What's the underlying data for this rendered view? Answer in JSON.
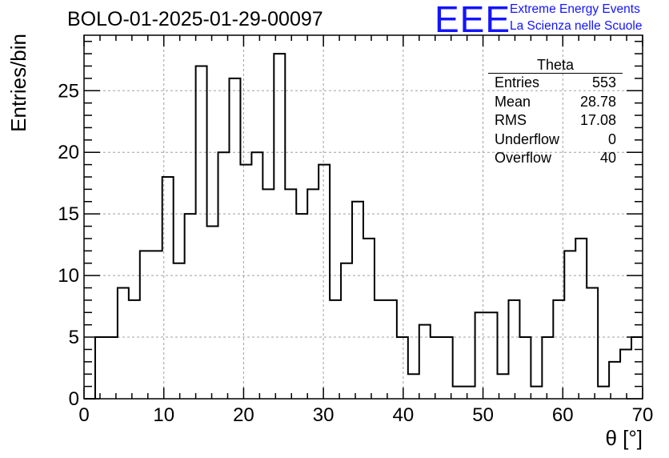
{
  "header": {
    "title": "BOLO-01-2025-01-29-00097",
    "logo_text": "EEE",
    "logo_line1": "Extreme Energy Events",
    "logo_line2": "La Scienza nelle Scuole"
  },
  "colors": {
    "logo": "#1414ff",
    "line": "#000000",
    "grid": "#a0a0a0"
  },
  "stats_box": {
    "title": "Theta",
    "rows": [
      {
        "label": "Entries",
        "value": "553"
      },
      {
        "label": "Mean",
        "value": "28.78"
      },
      {
        "label": "RMS",
        "value": "17.08"
      },
      {
        "label": "Underflow",
        "value": "0"
      },
      {
        "label": "Overflow",
        "value": "40"
      }
    ]
  },
  "chart_data": {
    "type": "histogram",
    "xlabel": "θ [°]",
    "ylabel": "Entries/bin",
    "xlim": [
      0,
      70
    ],
    "ylim": [
      0,
      29.5
    ],
    "grid": true,
    "x_ticks": [
      0,
      10,
      20,
      30,
      40,
      50,
      60,
      70
    ],
    "y_ticks": [
      0,
      5,
      10,
      15,
      20,
      25
    ],
    "bin_edges": [
      0,
      1.4,
      2.8,
      4.2,
      5.6,
      7,
      8.4,
      9.8,
      11.2,
      12.6,
      14,
      15.4,
      16.8,
      18.2,
      19.6,
      21,
      22.4,
      23.8,
      25.2,
      26.6,
      28,
      29.4,
      30.8,
      32.2,
      33.6,
      35,
      36.4,
      37.8,
      39.2,
      40.6,
      42,
      43.4,
      44.8,
      46.2,
      47.6,
      49,
      50.4,
      51.8,
      53.2,
      54.6,
      56,
      57.4,
      58.8,
      60.2,
      61.6,
      63,
      64.4,
      65.8,
      67.2,
      68.6,
      70
    ],
    "values": [
      0,
      5,
      5,
      9,
      8,
      12,
      12,
      18,
      11,
      15,
      27,
      14,
      20,
      26,
      19,
      20,
      17,
      28,
      17,
      15,
      17,
      19,
      8,
      11,
      16,
      13,
      8,
      8,
      5,
      2,
      6,
      5,
      5,
      1,
      1,
      7,
      7,
      2,
      8,
      5,
      1,
      5,
      8,
      12,
      13,
      9,
      1,
      3,
      4,
      5
    ]
  }
}
